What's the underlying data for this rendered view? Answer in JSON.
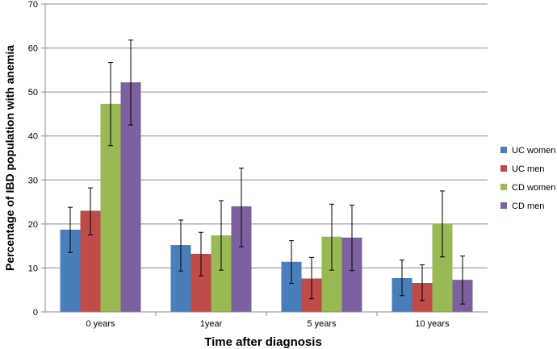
{
  "chart_data": {
    "type": "bar",
    "xlabel": "Time  after diagnosis",
    "ylabel": "Percentage of IBD population with anemia",
    "ylim": [
      0,
      70
    ],
    "yticks": [
      0,
      10,
      20,
      30,
      40,
      50,
      60,
      70
    ],
    "grid": "horizontal",
    "legend_position": "right",
    "categories": [
      "0 years",
      "1year",
      "5 years",
      "10 years"
    ],
    "series": [
      {
        "name": "UC women",
        "color": "#4a7ebb",
        "values": [
          18.7,
          15.2,
          11.4,
          7.7
        ],
        "err_low": [
          13.5,
          9.3,
          6.5,
          3.7
        ],
        "err_high": [
          23.8,
          20.9,
          16.2,
          11.8
        ]
      },
      {
        "name": "UC men",
        "color": "#be4b48",
        "values": [
          23.0,
          13.2,
          7.6,
          6.6
        ],
        "err_low": [
          17.5,
          8.2,
          3.0,
          2.6
        ],
        "err_high": [
          28.2,
          18.1,
          12.4,
          10.7
        ]
      },
      {
        "name": "CD women",
        "color": "#98b954",
        "values": [
          47.3,
          17.4,
          17.1,
          20.0
        ],
        "err_low": [
          37.8,
          9.5,
          9.5,
          12.5
        ],
        "err_high": [
          56.7,
          25.3,
          24.5,
          27.5
        ]
      },
      {
        "name": "CD men",
        "color": "#7d60a0",
        "values": [
          52.2,
          24.0,
          16.9,
          7.3
        ],
        "err_low": [
          42.5,
          14.8,
          9.4,
          1.8
        ],
        "err_high": [
          61.8,
          32.7,
          24.3,
          12.7
        ]
      }
    ]
  }
}
